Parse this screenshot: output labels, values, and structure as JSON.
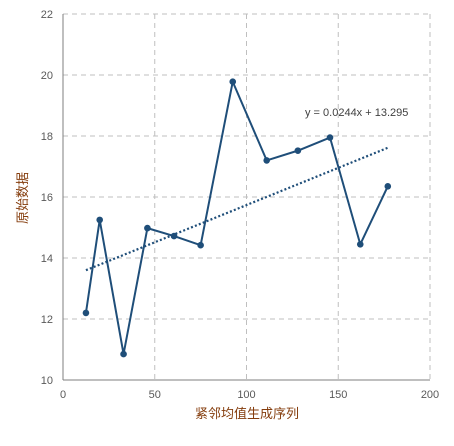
{
  "chart_data": {
    "type": "scatter",
    "xlabel": "紧邻均值生成序列",
    "ylabel": "原始数据",
    "xlim": [
      0,
      200
    ],
    "ylim": [
      10,
      22
    ],
    "xticks": [
      0,
      50,
      100,
      150,
      200
    ],
    "yticks": [
      10,
      12,
      14,
      16,
      18,
      20,
      22
    ],
    "grid": true,
    "legend": "none",
    "series": [
      {
        "style": "line+markers",
        "color": "#1f4e79",
        "x": [
          12.5,
          20,
          33,
          46,
          60.5,
          75,
          92.5,
          111,
          128,
          145.5,
          162,
          177
        ],
        "y": [
          12.2,
          15.25,
          10.85,
          14.98,
          14.72,
          14.42,
          19.78,
          17.2,
          17.52,
          17.95,
          14.45,
          16.35
        ]
      }
    ],
    "trendline": {
      "type": "linear",
      "color": "#1f4e79",
      "style": "dotted",
      "slope": 0.0244,
      "intercept": 13.295,
      "x_range": [
        12.5,
        177
      ],
      "equation_label": "y = 0.0244x + 13.295"
    }
  }
}
